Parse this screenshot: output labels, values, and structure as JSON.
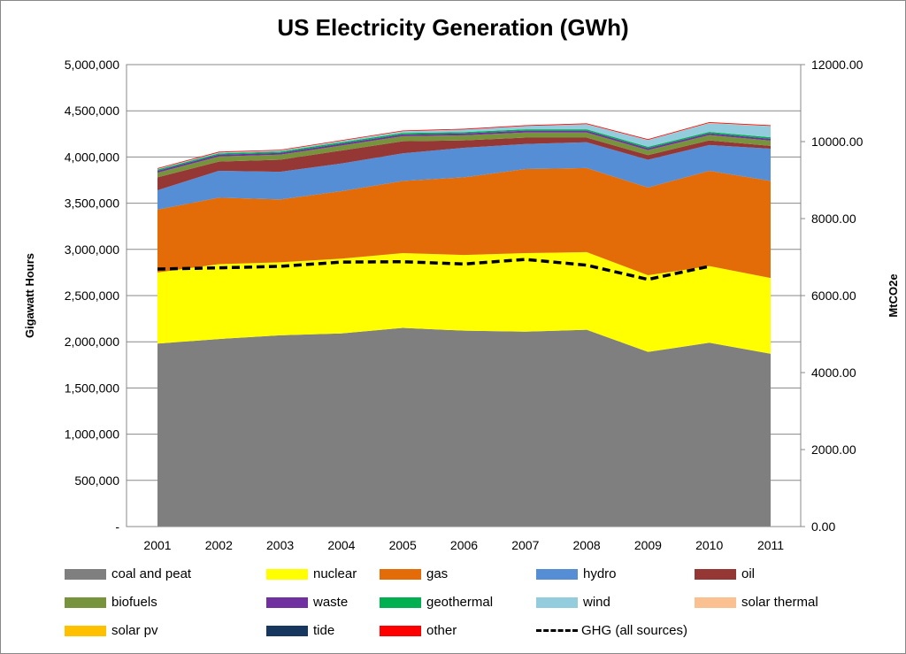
{
  "chart_data": {
    "type": "area",
    "title": "US Electricity Generation (GWh)",
    "ylabel": "Gigawatt Hours",
    "y2label": "MtCO2e",
    "categories": [
      "2001",
      "2002",
      "2003",
      "2004",
      "2005",
      "2006",
      "2007",
      "2008",
      "2009",
      "2010",
      "2011"
    ],
    "ylim": [
      0,
      5000000
    ],
    "y2lim": [
      0,
      12000
    ],
    "yticks": [
      "-",
      "500,000",
      "1,000,000",
      "1,500,000",
      "2,000,000",
      "2,500,000",
      "3,000,000",
      "3,500,000",
      "4,000,000",
      "4,500,000",
      "5,000,000"
    ],
    "y2ticks": [
      "0.00",
      "2000.00",
      "4000.00",
      "6000.00",
      "8000.00",
      "10000.00",
      "12000.00"
    ],
    "grid": true,
    "stacked": true,
    "legend_position": "bottom",
    "series": [
      {
        "name": "coal and peat",
        "color": "#7f7f7f",
        "values": [
          1980000,
          2030000,
          2070000,
          2090000,
          2150000,
          2120000,
          2110000,
          2130000,
          1890000,
          1990000,
          1870000
        ]
      },
      {
        "name": "nuclear",
        "color": "#ffff00",
        "values": [
          770000,
          810000,
          790000,
          810000,
          810000,
          820000,
          850000,
          840000,
          830000,
          830000,
          820000
        ]
      },
      {
        "name": "gas",
        "color": "#e36c09",
        "values": [
          680000,
          720000,
          680000,
          730000,
          780000,
          840000,
          910000,
          910000,
          950000,
          1030000,
          1050000
        ]
      },
      {
        "name": "hydro",
        "color": "#558ed5",
        "values": [
          210000,
          290000,
          300000,
          300000,
          300000,
          320000,
          270000,
          280000,
          300000,
          280000,
          350000
        ]
      },
      {
        "name": "oil",
        "color": "#953735",
        "values": [
          140000,
          100000,
          130000,
          140000,
          130000,
          80000,
          70000,
          50000,
          50000,
          50000,
          30000
        ]
      },
      {
        "name": "biofuels",
        "color": "#77933c",
        "values": [
          50000,
          55000,
          55000,
          55000,
          55000,
          55000,
          55000,
          55000,
          55000,
          57000,
          57000
        ]
      },
      {
        "name": "waste",
        "color": "#7030a0",
        "values": [
          20000,
          20000,
          20000,
          20000,
          20000,
          20000,
          20000,
          20000,
          20000,
          20000,
          20000
        ]
      },
      {
        "name": "geothermal",
        "color": "#00b050",
        "values": [
          14000,
          14000,
          14000,
          15000,
          15000,
          15000,
          15000,
          15000,
          15000,
          15000,
          16000
        ]
      },
      {
        "name": "wind",
        "color": "#93cddd",
        "values": [
          7000,
          10000,
          11000,
          14000,
          18000,
          27000,
          35000,
          55000,
          74000,
          95000,
          120000
        ]
      },
      {
        "name": "solar thermal",
        "color": "#fac090",
        "values": [
          500,
          500,
          500,
          600,
          600,
          500,
          600,
          800,
          800,
          800,
          800
        ]
      },
      {
        "name": "solar pv",
        "color": "#ffc000",
        "values": [
          100,
          100,
          100,
          100,
          100,
          100,
          100,
          100,
          200,
          1200,
          1800
        ]
      },
      {
        "name": "tide",
        "color": "#17375e",
        "values": [
          0,
          0,
          0,
          0,
          0,
          0,
          0,
          0,
          0,
          0,
          0
        ]
      },
      {
        "name": "other",
        "color": "#ff0000",
        "values": [
          8000,
          8000,
          8000,
          8000,
          8000,
          8000,
          8000,
          8000,
          8000,
          8000,
          8000
        ]
      }
    ],
    "line_series": {
      "name": "GHG (all sources)",
      "axis": "right",
      "color": "#000000",
      "style": "dashed",
      "values": [
        6690,
        6720,
        6760,
        6870,
        6880,
        6820,
        6940,
        6790,
        6420,
        6760,
        null
      ]
    }
  }
}
